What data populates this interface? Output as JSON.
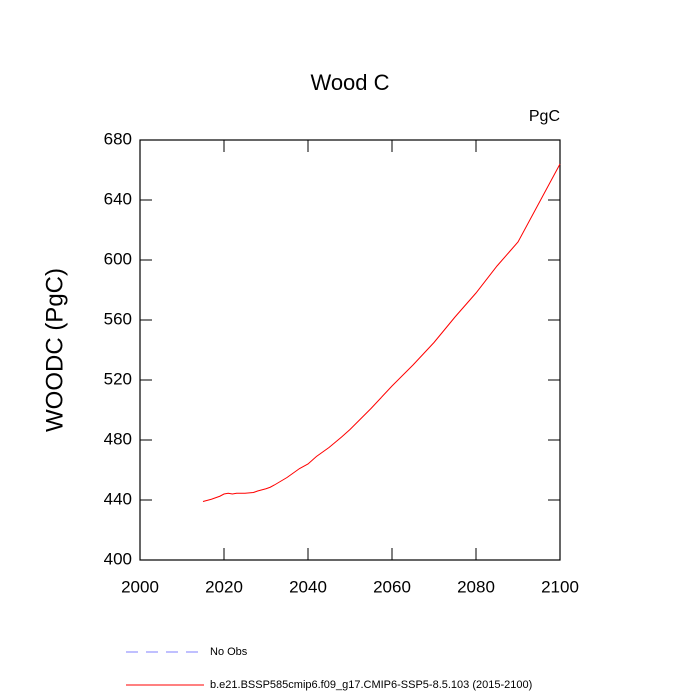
{
  "chart_data": {
    "type": "line",
    "title": "Wood C",
    "units": "PgC",
    "y_label": "WOODC  (PgC)",
    "x": [
      2015,
      2017,
      2019,
      2020,
      2021,
      2022,
      2023,
      2025,
      2027,
      2028,
      2030,
      2031,
      2032,
      2035,
      2038,
      2040,
      2042,
      2045,
      2048,
      2050,
      2055,
      2060,
      2065,
      2070,
      2075,
      2080,
      2085,
      2090,
      2095,
      2100
    ],
    "series": [
      {
        "name": "No Obs",
        "color": "#8080ff",
        "dashed": true,
        "values": [
          null,
          null,
          null,
          null,
          null,
          null,
          null,
          null,
          null,
          null,
          null,
          null,
          null,
          null,
          null,
          null,
          null,
          null,
          null,
          null,
          null,
          null,
          null,
          null,
          null,
          null,
          null,
          null,
          null,
          null
        ]
      },
      {
        "name": "b.e21.BSSP585cmip6.f09_g17.CMIP6-SSP5-8.5.103 (2015-2100)",
        "color": "#ff0000",
        "dashed": false,
        "values": [
          439,
          440.5,
          442.5,
          444,
          444.5,
          444,
          444.5,
          444.5,
          445,
          446,
          447.5,
          448.5,
          450,
          455,
          461,
          464,
          469,
          475,
          482,
          487,
          501,
          516,
          530,
          545,
          562,
          578,
          596,
          612,
          638,
          664
        ]
      }
    ],
    "xlim": [
      2000,
      2100
    ],
    "xticks": [
      2000,
      2020,
      2040,
      2060,
      2080,
      2100
    ],
    "ylim": [
      400,
      680
    ],
    "yticks": [
      400,
      440,
      480,
      520,
      560,
      600,
      640,
      680
    ]
  }
}
